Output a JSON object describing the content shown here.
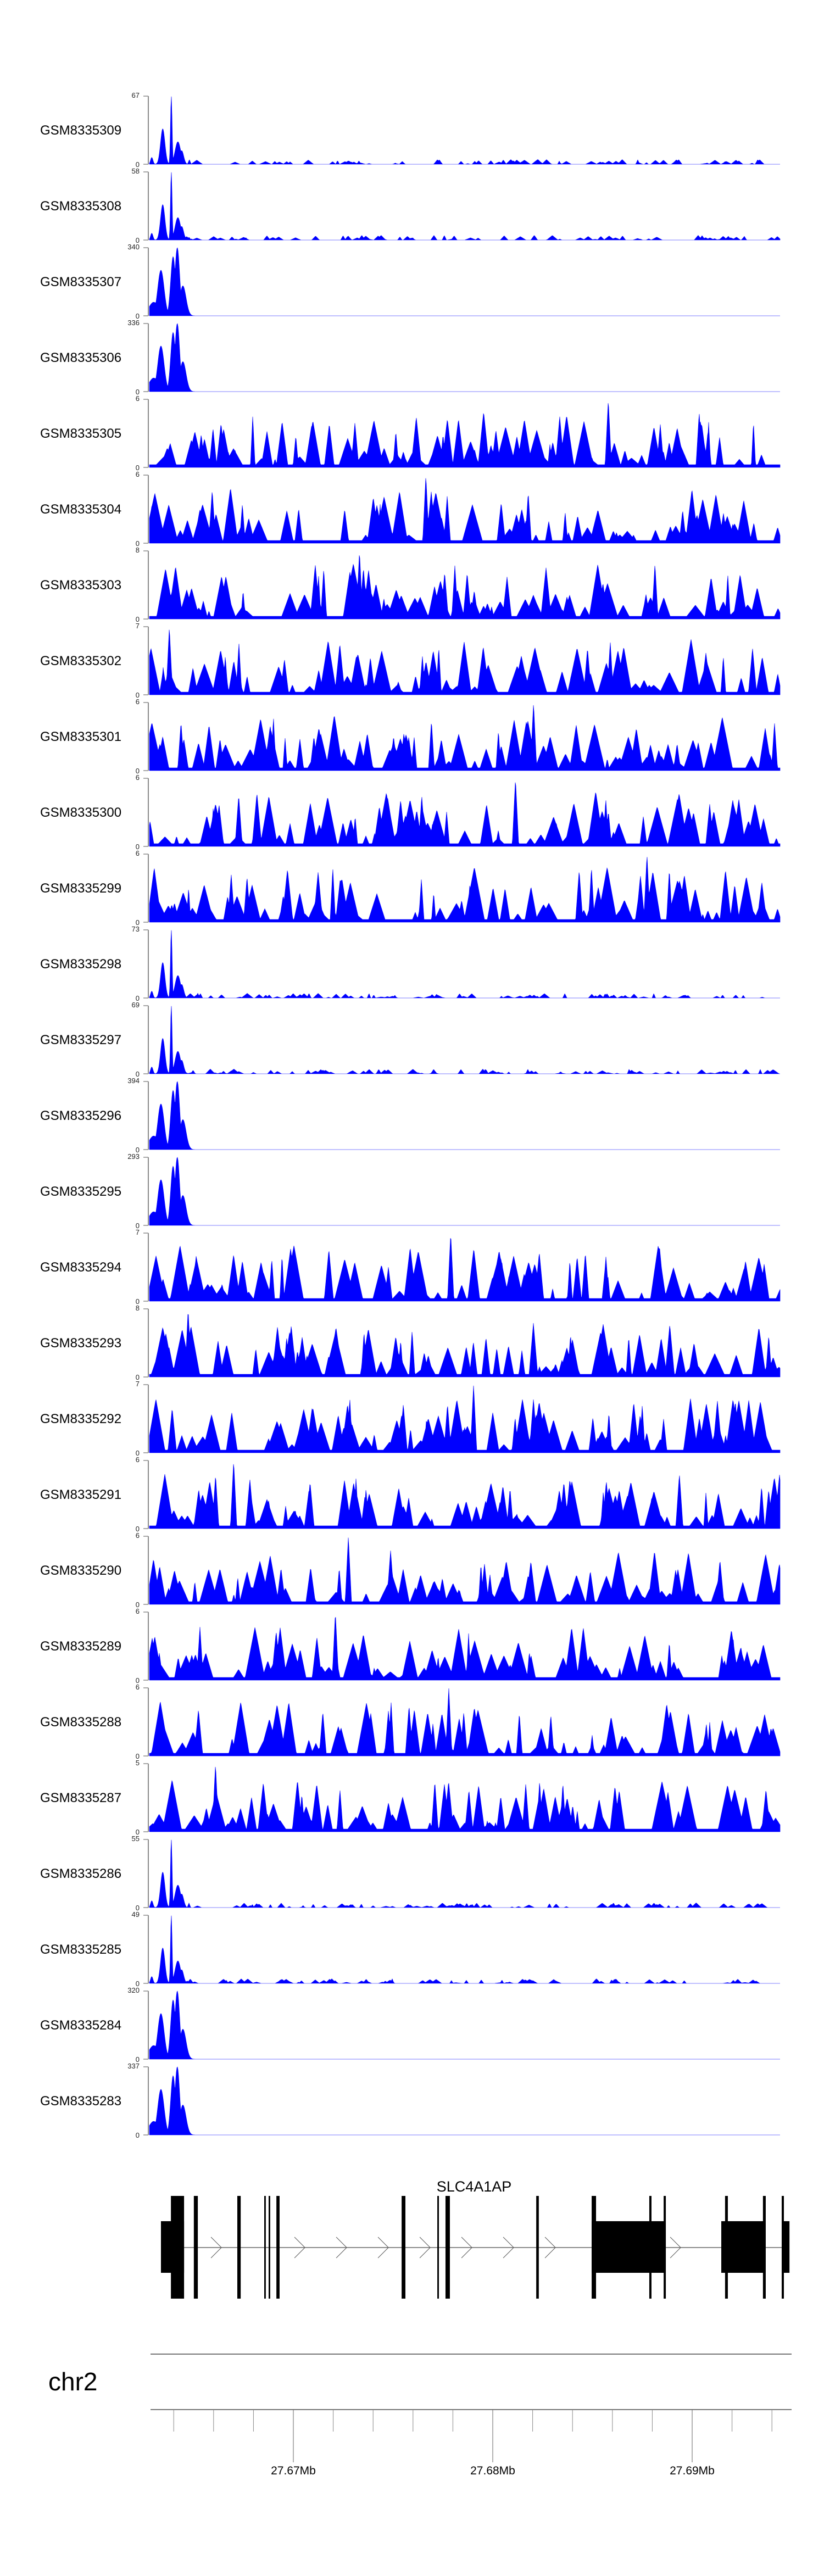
{
  "chart_data": {
    "type": "area",
    "title": "",
    "xlabel": "",
    "region": {
      "chromosome": "chr2",
      "start_mb": 27.66278,
      "end_mb": 27.69455
    },
    "color": "#0000ff",
    "tracks": [
      {
        "name": "GSM8335309",
        "ymax": 67,
        "ymin": 0,
        "shape": "sharp"
      },
      {
        "name": "GSM8335308",
        "ymax": 58,
        "ymin": 0,
        "shape": "sharp"
      },
      {
        "name": "GSM8335307",
        "ymax": 340,
        "ymin": 0,
        "shape": "broad"
      },
      {
        "name": "GSM8335306",
        "ymax": 336,
        "ymin": 0,
        "shape": "broad"
      },
      {
        "name": "GSM8335305",
        "ymax": 6,
        "ymin": 0,
        "shape": "noisy"
      },
      {
        "name": "GSM8335304",
        "ymax": 6,
        "ymin": 0,
        "shape": "noisy"
      },
      {
        "name": "GSM8335303",
        "ymax": 8,
        "ymin": 0,
        "shape": "noisy"
      },
      {
        "name": "GSM8335302",
        "ymax": 7,
        "ymin": 0,
        "shape": "noisy"
      },
      {
        "name": "GSM8335301",
        "ymax": 6,
        "ymin": 0,
        "shape": "noisy"
      },
      {
        "name": "GSM8335300",
        "ymax": 6,
        "ymin": 0,
        "shape": "noisy"
      },
      {
        "name": "GSM8335299",
        "ymax": 6,
        "ymin": 0,
        "shape": "noisy"
      },
      {
        "name": "GSM8335298",
        "ymax": 73,
        "ymin": 0,
        "shape": "sharp"
      },
      {
        "name": "GSM8335297",
        "ymax": 69,
        "ymin": 0,
        "shape": "sharp"
      },
      {
        "name": "GSM8335296",
        "ymax": 394,
        "ymin": 0,
        "shape": "broad"
      },
      {
        "name": "GSM8335295",
        "ymax": 293,
        "ymin": 0,
        "shape": "broad"
      },
      {
        "name": "GSM8335294",
        "ymax": 7,
        "ymin": 0,
        "shape": "noisy"
      },
      {
        "name": "GSM8335293",
        "ymax": 8,
        "ymin": 0,
        "shape": "noisy"
      },
      {
        "name": "GSM8335292",
        "ymax": 7,
        "ymin": 0,
        "shape": "noisy"
      },
      {
        "name": "GSM8335291",
        "ymax": 6,
        "ymin": 0,
        "shape": "noisy"
      },
      {
        "name": "GSM8335290",
        "ymax": 6,
        "ymin": 0,
        "shape": "noisy"
      },
      {
        "name": "GSM8335289",
        "ymax": 6,
        "ymin": 0,
        "shape": "noisy"
      },
      {
        "name": "GSM8335288",
        "ymax": 6,
        "ymin": 0,
        "shape": "noisy"
      },
      {
        "name": "GSM8335287",
        "ymax": 5,
        "ymin": 0,
        "shape": "noisy"
      },
      {
        "name": "GSM8335286",
        "ymax": 55,
        "ymin": 0,
        "shape": "sharp"
      },
      {
        "name": "GSM8335285",
        "ymax": 49,
        "ymin": 0,
        "shape": "sharp"
      },
      {
        "name": "GSM8335284",
        "ymax": 320,
        "ymin": 0,
        "shape": "broad"
      },
      {
        "name": "GSM8335283",
        "ymax": 337,
        "ymin": 0,
        "shape": "broad"
      }
    ],
    "peak_templates": {
      "sharp": [
        [
          27.6629,
          0.1,
          6e-05
        ],
        [
          27.66345,
          0.52,
          0.00011
        ],
        [
          27.66388,
          1.0,
          4e-05
        ],
        [
          27.66421,
          0.33,
          0.00014
        ],
        [
          27.6644,
          0.2,
          0.0001
        ]
      ],
      "broad": [
        [
          27.663,
          0.2,
          0.00025
        ],
        [
          27.66336,
          0.67,
          0.00016
        ],
        [
          27.66397,
          0.87,
          0.00012
        ],
        [
          27.66418,
          1.0,
          0.00012
        ],
        [
          27.66446,
          0.44,
          0.00016
        ]
      ]
    },
    "gene": {
      "name": "SLC4A1AP",
      "strand": "+",
      "utr_blocks": [
        [
          27.66336,
          27.66452
        ],
        [
          27.68496,
          27.68865
        ],
        [
          27.69146,
          27.69364
        ],
        [
          27.69449,
          27.69488
        ]
      ],
      "exons": [
        [
          27.66386,
          27.66452
        ],
        [
          27.66501,
          27.66521
        ],
        [
          27.66719,
          27.66736
        ],
        [
          27.66854,
          27.66862
        ],
        [
          27.66876,
          27.66884
        ],
        [
          27.66915,
          27.66931
        ],
        [
          27.67543,
          27.67562
        ],
        [
          27.67722,
          27.6773
        ],
        [
          27.67763,
          27.67785
        ],
        [
          27.68218,
          27.68231
        ],
        [
          27.68496,
          27.68518
        ],
        [
          27.68785,
          27.68796
        ],
        [
          27.68857,
          27.68868
        ],
        [
          27.69165,
          27.69179
        ],
        [
          27.69355,
          27.69369
        ],
        [
          27.69449,
          27.6946
        ]
      ],
      "intron_span": [
        27.66452,
        27.69449
      ]
    },
    "ideogram": {
      "label": "chr2"
    },
    "axis": {
      "major_ticks": [
        {
          "mb": 27.67,
          "label": "27.67Mb"
        },
        {
          "mb": 27.68,
          "label": "27.68Mb"
        },
        {
          "mb": 27.69,
          "label": "27.69Mb"
        }
      ],
      "minor_tick_step_mb": 0.002,
      "minor_tick_range_mb": [
        27.664,
        27.694
      ]
    }
  }
}
